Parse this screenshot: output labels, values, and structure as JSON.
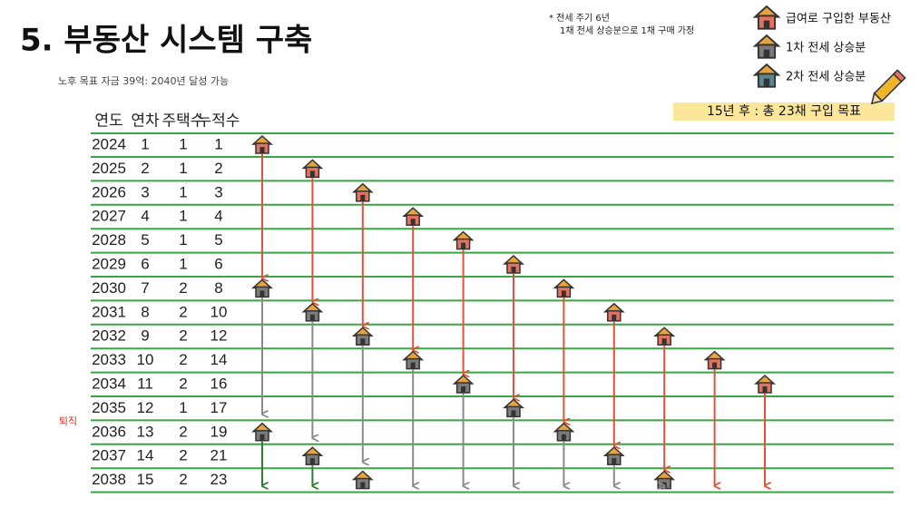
{
  "header": {
    "title": "5. 부동산 시스템 구축",
    "subtitle": "노후 목표 자금 39억: 2040년 달성 가능"
  },
  "note": {
    "lines": [
      "* 전세 주기 6년",
      "1채 전세 상승분으로 1채 구매 가정"
    ]
  },
  "legend": {
    "items": [
      "급여로 구입한 부동산",
      "1차 전세 상승분",
      "2차 전세 상승분"
    ]
  },
  "goal": "15년 후 : 총 23채 구입 목표",
  "retire_label": "퇴직",
  "table": {
    "header": [
      "연도",
      "연차",
      "주택수",
      "누적수"
    ],
    "rows": [
      [
        2024,
        1,
        1,
        1
      ],
      [
        2025,
        2,
        1,
        2
      ],
      [
        2026,
        3,
        1,
        3
      ],
      [
        2027,
        4,
        1,
        4
      ],
      [
        2028,
        5,
        1,
        5
      ],
      [
        2029,
        6,
        1,
        6
      ],
      [
        2030,
        7,
        2,
        8
      ],
      [
        2031,
        8,
        2,
        10
      ],
      [
        2032,
        9,
        2,
        12
      ],
      [
        2033,
        10,
        2,
        14
      ],
      [
        2034,
        11,
        2,
        16
      ],
      [
        2035,
        12,
        1,
        17
      ],
      [
        2036,
        13,
        2,
        19
      ],
      [
        2037,
        14,
        2,
        21
      ],
      [
        2038,
        15,
        2,
        23
      ]
    ]
  }
}
